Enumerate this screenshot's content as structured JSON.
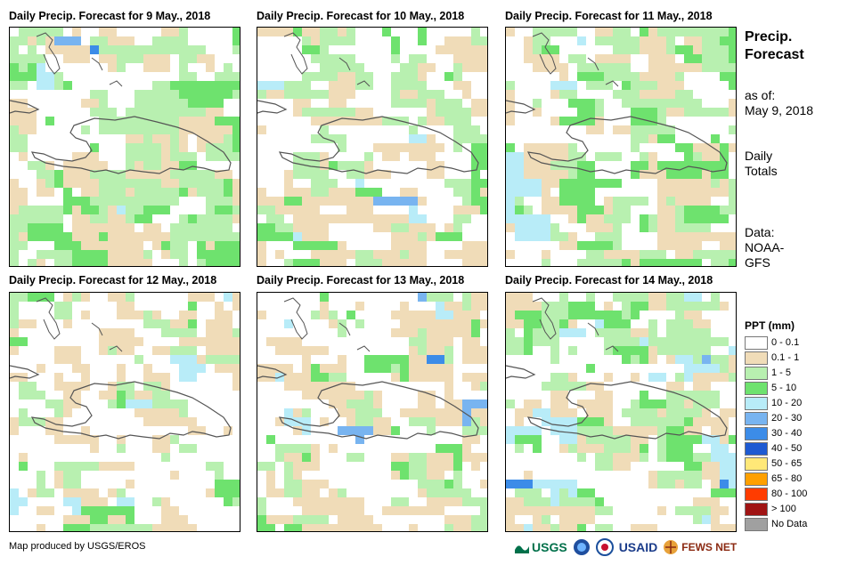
{
  "panels": [
    {
      "title": "Daily Precip. Forecast for 9 May., 2018"
    },
    {
      "title": "Daily Precip. Forecast for 10 May., 2018"
    },
    {
      "title": "Daily Precip. Forecast for 11 May., 2018"
    },
    {
      "title": "Daily Precip. Forecast for 12 May., 2018"
    },
    {
      "title": "Daily Precip. Forecast for 13 May., 2018"
    },
    {
      "title": "Daily Precip. Forecast for 14 May., 2018"
    }
  ],
  "side": {
    "title_line1": "Precip.",
    "title_line2": "Forecast",
    "asof_line1": "as of:",
    "asof_line2": "May 9, 2018",
    "totals_line1": "Daily",
    "totals_line2": "Totals",
    "data_line1": "Data:",
    "data_line2": "NOAA-",
    "data_line3": "GFS"
  },
  "legend": {
    "title": "PPT (mm)",
    "items": [
      {
        "label": "0 - 0.1",
        "color": "#ffffff"
      },
      {
        "label": "0.1 - 1",
        "color": "#f0dcb8"
      },
      {
        "label": "1 - 5",
        "color": "#b8f0b0"
      },
      {
        "label": "5 - 10",
        "color": "#6ee26e"
      },
      {
        "label": "10 - 20",
        "color": "#b8ecf8"
      },
      {
        "label": "20 - 30",
        "color": "#78b4f0"
      },
      {
        "label": "30 - 40",
        "color": "#3c8ce8"
      },
      {
        "label": "40 - 50",
        "color": "#1e5ad2"
      },
      {
        "label": "50 - 65",
        "color": "#ffe878"
      },
      {
        "label": "65 - 80",
        "color": "#ffa000"
      },
      {
        "label": "80 - 100",
        "color": "#ff3c00"
      },
      {
        "label": "> 100",
        "color": "#a01414"
      },
      {
        "label": "No Data",
        "color": "#a0a0a0"
      }
    ]
  },
  "footer": {
    "credit": "Map produced by USGS/EROS"
  },
  "logos": {
    "usgs": "USGS",
    "usaid": "USAID",
    "fewsnet": "FEWS NET"
  }
}
